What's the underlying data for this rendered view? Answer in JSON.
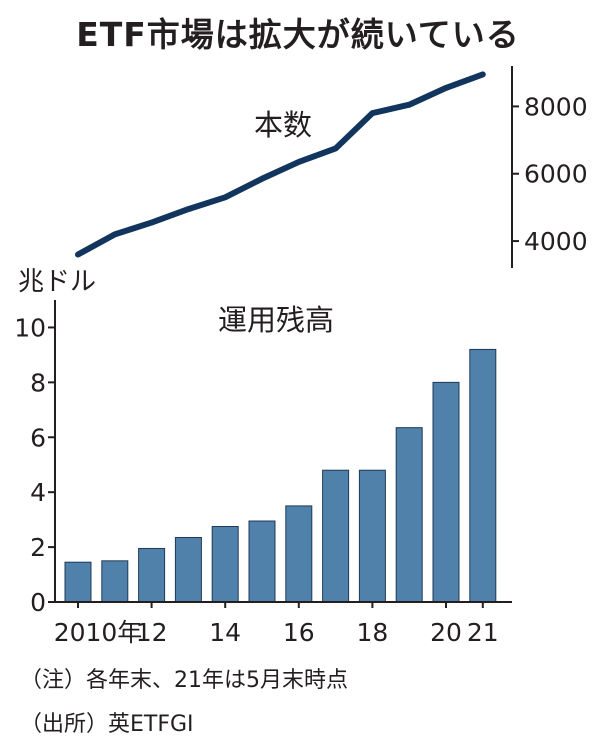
{
  "title": "ETF市場は拡大が続いている",
  "notes": {
    "note": "（注）各年末、21年は5月末時点",
    "source": "（出所）英ETFGI"
  },
  "colors": {
    "line": "#12355e",
    "bar": "#4f81ab",
    "bar_edge": "#1f3a57",
    "axis": "#231f20"
  },
  "chart_data": [
    {
      "type": "line",
      "title": "本数",
      "x": [
        "2010",
        "2011",
        "2012",
        "2013",
        "2014",
        "2015",
        "2016",
        "2017",
        "2018",
        "2019",
        "2020",
        "2021"
      ],
      "series": [
        {
          "values": [
            3600,
            4200,
            4550,
            4950,
            5300,
            5850,
            6350,
            6750,
            7800,
            8050,
            8550,
            8950
          ]
        }
      ],
      "ylim": [
        3200,
        9200
      ],
      "yticks": [
        4000,
        6000,
        8000
      ],
      "ytick_labels": [
        "4000",
        "6000",
        "8000"
      ],
      "axis_side": "right"
    },
    {
      "type": "bar",
      "title": "運用残高",
      "unit_label": "兆ドル",
      "categories": [
        "2010",
        "2011",
        "2012",
        "2013",
        "2014",
        "2015",
        "2016",
        "2017",
        "2018",
        "2019",
        "2020",
        "2021"
      ],
      "values": [
        1.45,
        1.5,
        1.95,
        2.35,
        2.75,
        2.95,
        3.5,
        4.8,
        4.8,
        6.35,
        8.0,
        9.2
      ],
      "ylim": [
        0,
        11
      ],
      "yticks": [
        0,
        2,
        4,
        6,
        8,
        10
      ],
      "ytick_labels": [
        "0",
        "2",
        "4",
        "6",
        "8",
        "10"
      ],
      "xtick_labels": [
        {
          "index": 0,
          "label": "2010年"
        },
        {
          "index": 2,
          "label": "12"
        },
        {
          "index": 4,
          "label": "14"
        },
        {
          "index": 6,
          "label": "16"
        },
        {
          "index": 8,
          "label": "18"
        },
        {
          "index": 10,
          "label": "20"
        },
        {
          "index": 11,
          "label": "21"
        }
      ]
    }
  ]
}
